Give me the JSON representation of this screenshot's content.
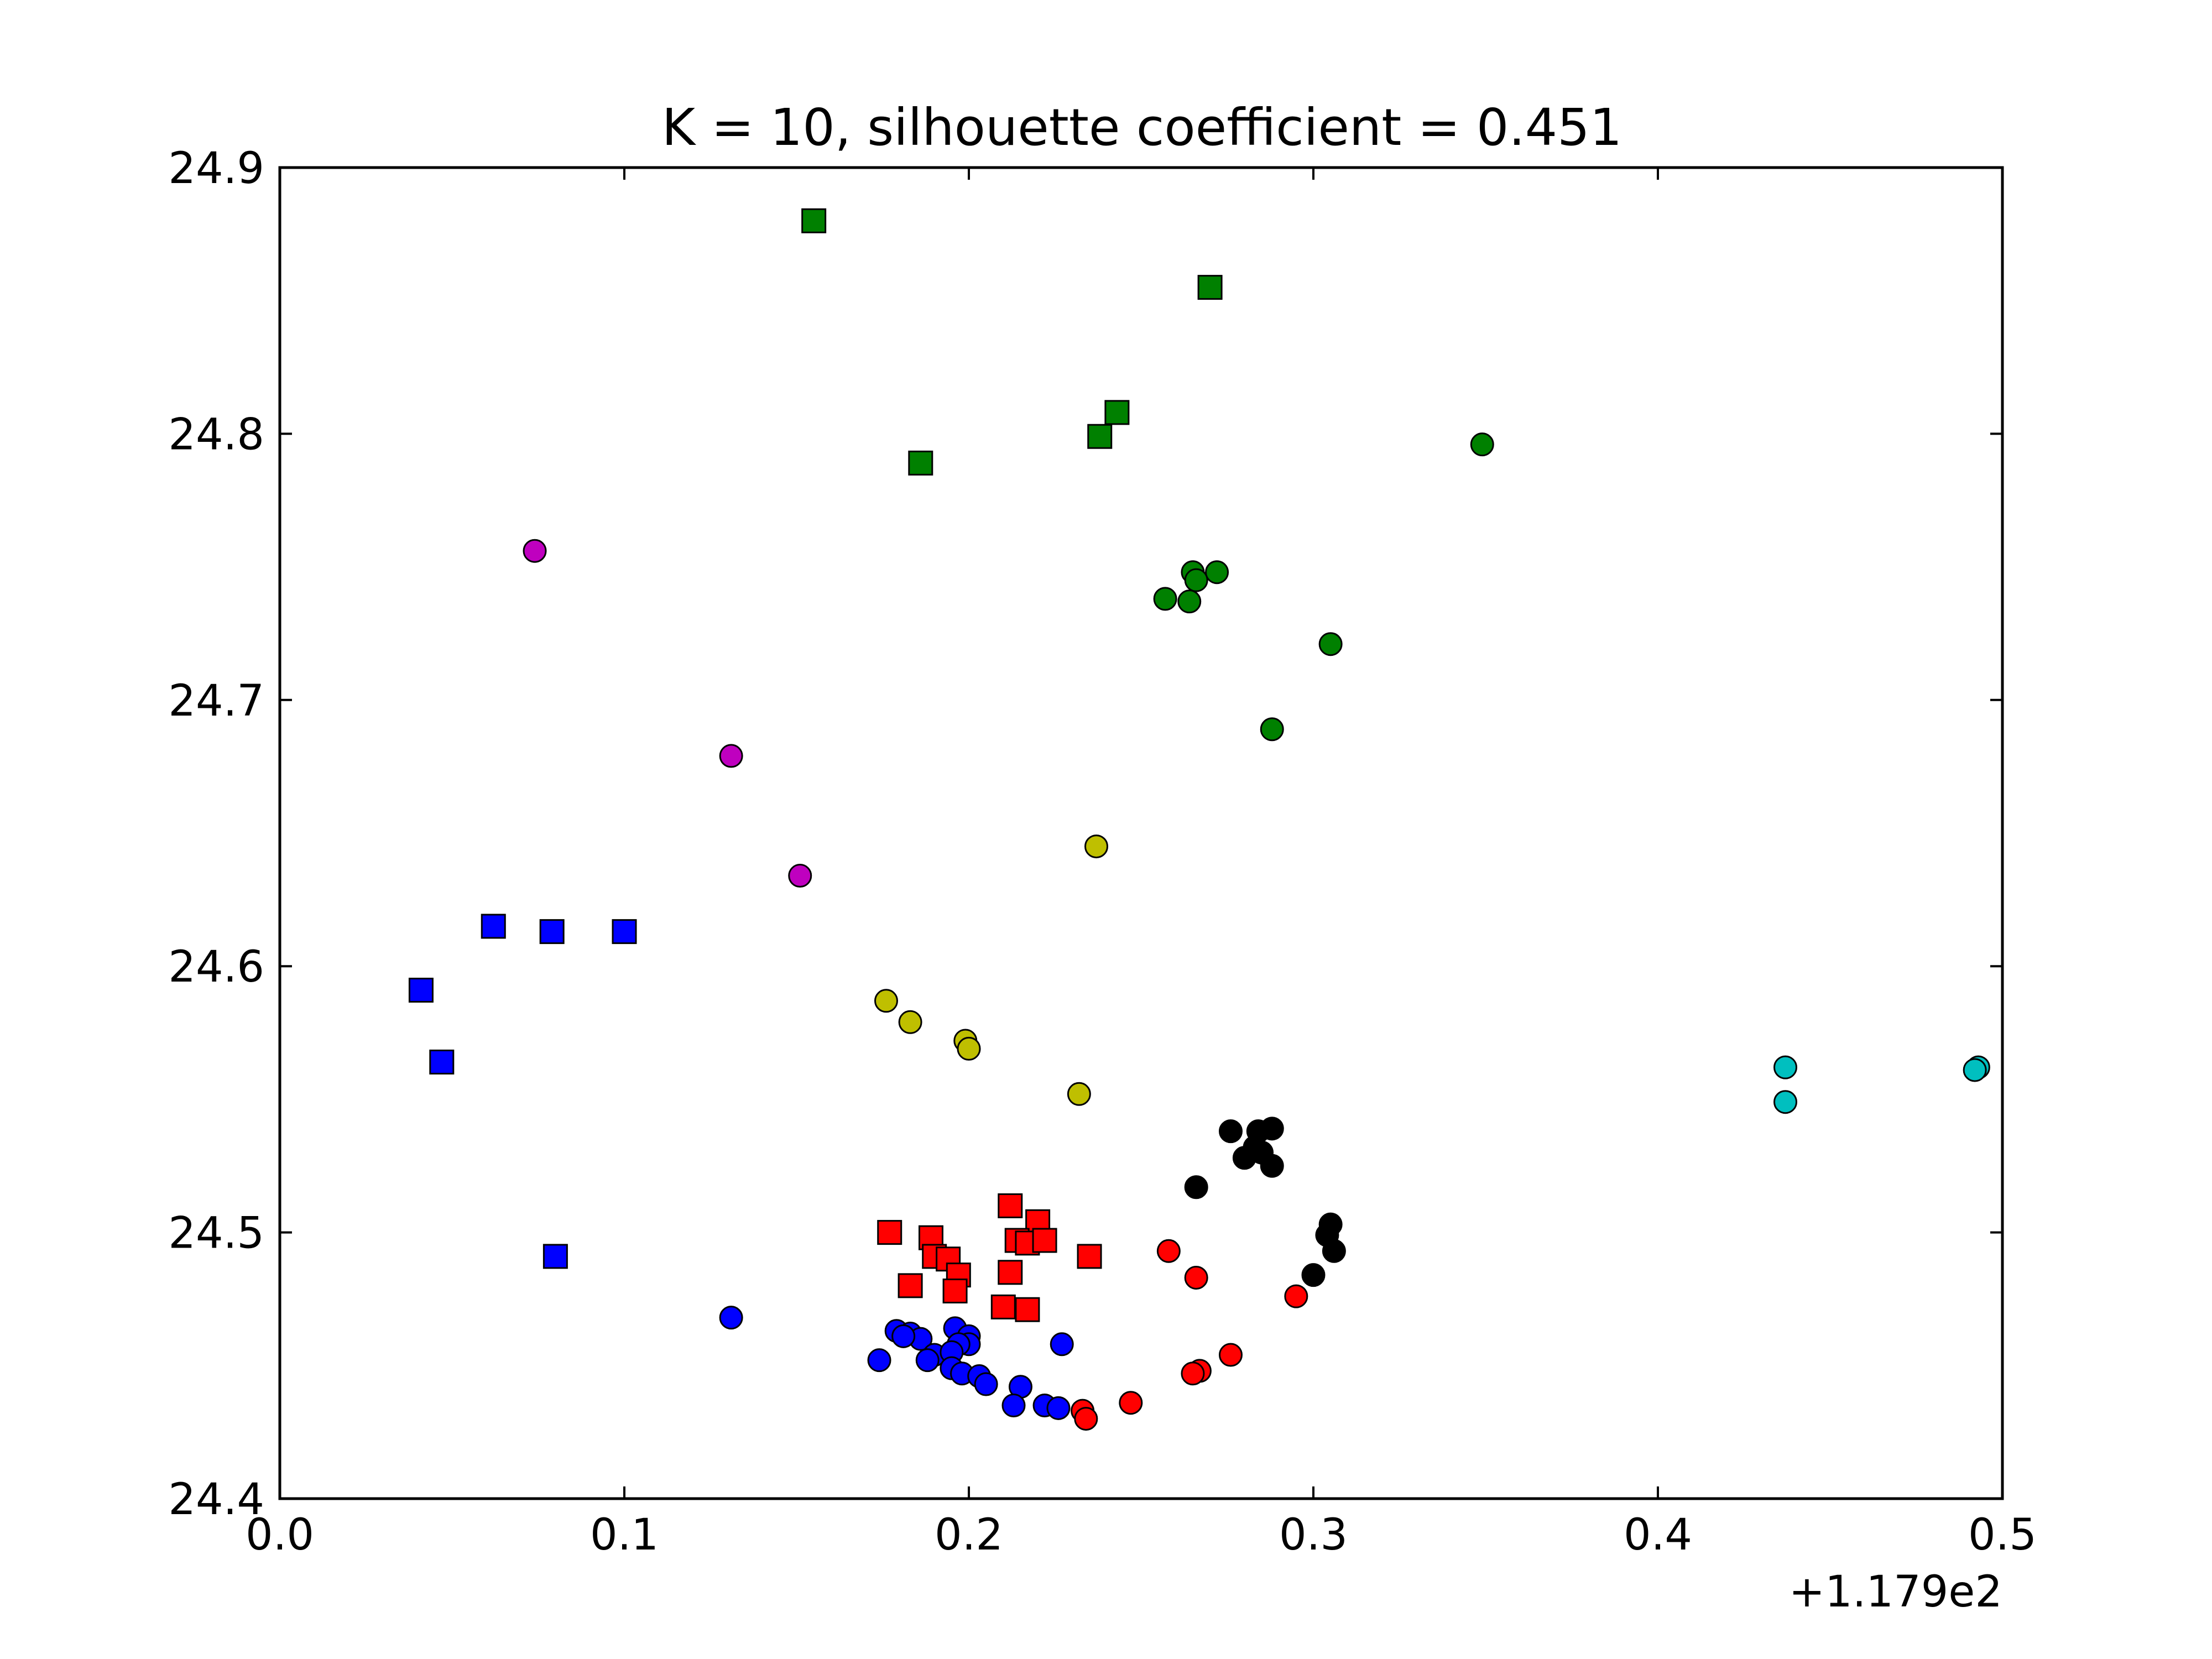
{
  "chart_data": {
    "type": "scatter",
    "title": "K = 10, silhouette coefficient = 0.451",
    "xlabel": "",
    "ylabel": "",
    "x_offset_label": "+1.179e2",
    "xlim": [
      0.0,
      0.5
    ],
    "ylim": [
      24.4,
      24.9
    ],
    "xticks": [
      0.0,
      0.1,
      0.2,
      0.3,
      0.4,
      0.5
    ],
    "xtick_labels": [
      "0.0",
      "0.1",
      "0.2",
      "0.3",
      "0.4",
      "0.5"
    ],
    "yticks": [
      24.4,
      24.5,
      24.6,
      24.7,
      24.8,
      24.9
    ],
    "ytick_labels": [
      "24.4",
      "24.5",
      "24.6",
      "24.7",
      "24.8",
      "24.9"
    ],
    "grid": false,
    "series": [
      {
        "name": "cluster-green-squares",
        "color": "#008000",
        "marker": "square",
        "points": [
          [
            0.155,
            24.88
          ],
          [
            0.27,
            24.855
          ],
          [
            0.243,
            24.808
          ],
          [
            0.238,
            24.799
          ],
          [
            0.186,
            24.789
          ]
        ]
      },
      {
        "name": "cluster-green-circles",
        "color": "#008000",
        "marker": "circle",
        "points": [
          [
            0.349,
            24.796
          ],
          [
            0.265,
            24.748
          ],
          [
            0.272,
            24.748
          ],
          [
            0.266,
            24.745
          ],
          [
            0.257,
            24.738
          ],
          [
            0.264,
            24.737
          ],
          [
            0.305,
            24.721
          ],
          [
            0.288,
            24.689
          ]
        ]
      },
      {
        "name": "cluster-magenta-circles",
        "color": "#bf00bf",
        "marker": "circle",
        "points": [
          [
            0.074,
            24.756
          ],
          [
            0.131,
            24.679
          ],
          [
            0.151,
            24.634
          ]
        ]
      },
      {
        "name": "cluster-yellow-circles",
        "color": "#bfbf00",
        "marker": "circle",
        "points": [
          [
            0.237,
            24.645
          ],
          [
            0.176,
            24.587
          ],
          [
            0.183,
            24.579
          ],
          [
            0.199,
            24.572
          ],
          [
            0.2,
            24.569
          ],
          [
            0.232,
            24.552
          ]
        ]
      },
      {
        "name": "cluster-blue-squares",
        "color": "#0000ff",
        "marker": "square",
        "points": [
          [
            0.062,
            24.615
          ],
          [
            0.079,
            24.613
          ],
          [
            0.1,
            24.613
          ],
          [
            0.041,
            24.591
          ],
          [
            0.047,
            24.564
          ],
          [
            0.08,
            24.491
          ]
        ]
      },
      {
        "name": "cluster-cyan-circles",
        "color": "#00bfbf",
        "marker": "circle",
        "points": [
          [
            0.437,
            24.562
          ],
          [
            0.437,
            24.549
          ],
          [
            0.493,
            24.562
          ],
          [
            0.492,
            24.561
          ]
        ]
      },
      {
        "name": "cluster-black-circles",
        "color": "#000000",
        "marker": "circle",
        "points": [
          [
            0.276,
            24.538
          ],
          [
            0.284,
            24.538
          ],
          [
            0.288,
            24.539
          ],
          [
            0.283,
            24.532
          ],
          [
            0.28,
            24.528
          ],
          [
            0.285,
            24.53
          ],
          [
            0.288,
            24.525
          ],
          [
            0.266,
            24.517
          ],
          [
            0.305,
            24.503
          ],
          [
            0.304,
            24.499
          ],
          [
            0.306,
            24.493
          ],
          [
            0.3,
            24.484
          ]
        ]
      },
      {
        "name": "cluster-red-squares",
        "color": "#ff0000",
        "marker": "square",
        "points": [
          [
            0.212,
            24.51
          ],
          [
            0.22,
            24.504
          ],
          [
            0.177,
            24.5
          ],
          [
            0.189,
            24.498
          ],
          [
            0.214,
            24.497
          ],
          [
            0.217,
            24.496
          ],
          [
            0.222,
            24.497
          ],
          [
            0.19,
            24.491
          ],
          [
            0.194,
            24.49
          ],
          [
            0.235,
            24.491
          ],
          [
            0.212,
            24.485
          ],
          [
            0.197,
            24.484
          ],
          [
            0.183,
            24.48
          ],
          [
            0.196,
            24.478
          ],
          [
            0.21,
            24.472
          ],
          [
            0.217,
            24.471
          ]
        ]
      },
      {
        "name": "cluster-red-circles",
        "color": "#ff0000",
        "marker": "circle",
        "points": [
          [
            0.258,
            24.493
          ],
          [
            0.266,
            24.483
          ],
          [
            0.295,
            24.476
          ],
          [
            0.276,
            24.454
          ],
          [
            0.267,
            24.448
          ],
          [
            0.265,
            24.447
          ],
          [
            0.247,
            24.436
          ],
          [
            0.233,
            24.433
          ],
          [
            0.234,
            24.43
          ]
        ]
      },
      {
        "name": "cluster-blue-circles",
        "color": "#0000ff",
        "marker": "circle",
        "points": [
          [
            0.131,
            24.468
          ],
          [
            0.179,
            24.463
          ],
          [
            0.183,
            24.462
          ],
          [
            0.186,
            24.46
          ],
          [
            0.181,
            24.461
          ],
          [
            0.196,
            24.464
          ],
          [
            0.2,
            24.461
          ],
          [
            0.2,
            24.458
          ],
          [
            0.197,
            24.458
          ],
          [
            0.227,
            24.458
          ],
          [
            0.19,
            24.454
          ],
          [
            0.195,
            24.455
          ],
          [
            0.174,
            24.452
          ],
          [
            0.188,
            24.452
          ],
          [
            0.195,
            24.449
          ],
          [
            0.198,
            24.447
          ],
          [
            0.203,
            24.446
          ],
          [
            0.205,
            24.443
          ],
          [
            0.215,
            24.442
          ],
          [
            0.213,
            24.435
          ],
          [
            0.222,
            24.435
          ],
          [
            0.226,
            24.434
          ]
        ]
      }
    ]
  }
}
